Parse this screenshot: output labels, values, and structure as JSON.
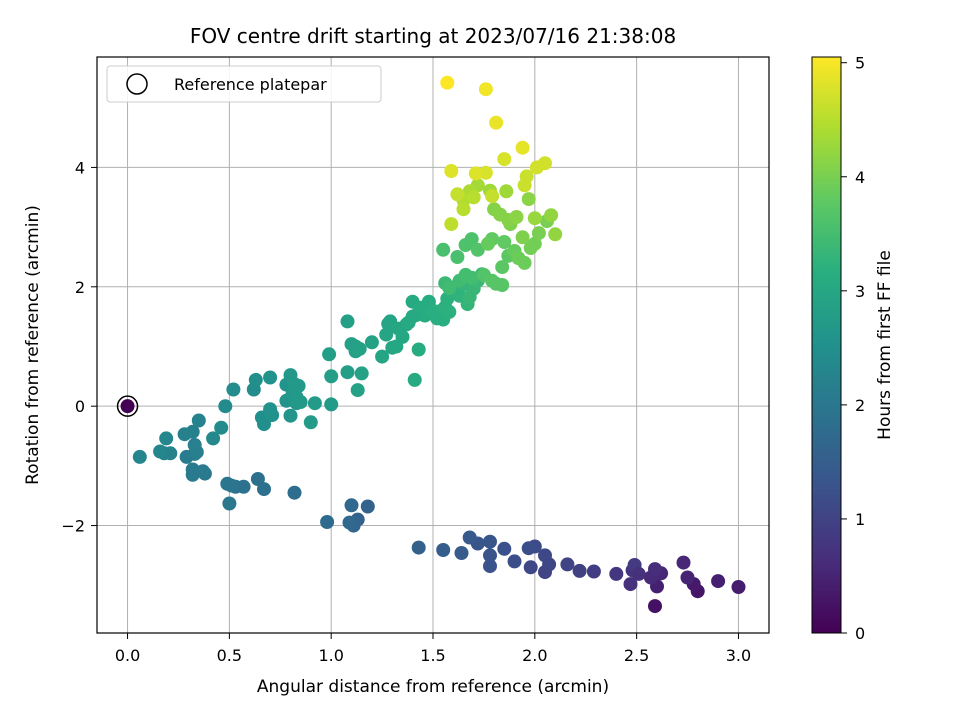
{
  "chart_data": {
    "type": "scatter",
    "title": "FOV centre drift starting at 2023/07/16 21:38:08",
    "xlabel": "Angular distance from reference (arcmin)",
    "ylabel": "Rotation from reference (arcmin)",
    "xlim": [
      -0.15,
      3.15
    ],
    "ylim": [
      -3.8,
      5.85
    ],
    "xticks": [
      0.0,
      0.5,
      1.0,
      1.5,
      2.0,
      2.5,
      3.0
    ],
    "xtick_labels": [
      "0.0",
      "0.5",
      "1.0",
      "1.5",
      "2.0",
      "2.5",
      "3.0"
    ],
    "yticks": [
      -2,
      0,
      2,
      4
    ],
    "ytick_labels": [
      "−2",
      "0",
      "2",
      "4"
    ],
    "grid": true,
    "legend": {
      "placement": "upper-left",
      "entries": [
        {
          "label": "Reference platepar",
          "marker": "open-circle"
        }
      ]
    },
    "reference_point": {
      "x": 0.0,
      "y": 0.0,
      "color": "#440154"
    },
    "colorbar": {
      "label": "Hours from first FF file",
      "range": [
        0,
        5.05
      ],
      "ticks": [
        0,
        1,
        2,
        3,
        4,
        5
      ],
      "tick_labels": [
        "0",
        "1",
        "2",
        "3",
        "4",
        "5"
      ],
      "colormap": "viridis"
    },
    "points": [
      [
        2.59,
        -3.35,
        0.25
      ],
      [
        2.8,
        -3.1,
        0.3
      ],
      [
        2.78,
        -2.98,
        0.35
      ],
      [
        3.0,
        -3.03,
        0.4
      ],
      [
        2.9,
        -2.93,
        0.45
      ],
      [
        2.75,
        -2.87,
        0.5
      ],
      [
        2.73,
        -2.62,
        0.55
      ],
      [
        2.6,
        -3.02,
        0.45
      ],
      [
        2.62,
        -2.8,
        0.55
      ],
      [
        2.57,
        -2.87,
        0.6
      ],
      [
        2.59,
        -2.73,
        0.65
      ],
      [
        2.47,
        -2.98,
        0.7
      ],
      [
        2.48,
        -2.75,
        0.75
      ],
      [
        2.4,
        -2.81,
        0.8
      ],
      [
        2.49,
        -2.66,
        0.85
      ],
      [
        2.51,
        -2.81,
        0.7
      ],
      [
        2.29,
        -2.77,
        0.9
      ],
      [
        2.22,
        -2.76,
        0.95
      ],
      [
        2.16,
        -2.65,
        1.0
      ],
      [
        2.05,
        -2.78,
        1.0
      ],
      [
        2.07,
        -2.65,
        1.05
      ],
      [
        2.05,
        -2.5,
        1.1
      ],
      [
        1.98,
        -2.7,
        1.1
      ],
      [
        2.0,
        -2.35,
        1.15
      ],
      [
        1.97,
        -2.38,
        1.2
      ],
      [
        1.9,
        -2.6,
        1.2
      ],
      [
        1.85,
        -2.39,
        1.25
      ],
      [
        1.78,
        -2.68,
        1.3
      ],
      [
        1.78,
        -2.5,
        1.3
      ],
      [
        1.78,
        -2.27,
        1.35
      ],
      [
        1.72,
        -2.3,
        1.35
      ],
      [
        1.68,
        -2.2,
        1.4
      ],
      [
        1.64,
        -2.46,
        1.45
      ],
      [
        1.55,
        -2.41,
        1.5
      ],
      [
        1.43,
        -2.37,
        1.55
      ],
      [
        1.18,
        -1.68,
        1.6
      ],
      [
        1.13,
        -1.9,
        1.6
      ],
      [
        1.11,
        -2.0,
        1.65
      ],
      [
        1.09,
        -1.95,
        1.7
      ],
      [
        1.1,
        -1.66,
        1.7
      ],
      [
        0.98,
        -1.94,
        1.75
      ],
      [
        0.82,
        -1.45,
        1.8
      ],
      [
        0.67,
        -1.39,
        1.85
      ],
      [
        0.64,
        -1.22,
        1.85
      ],
      [
        0.57,
        -1.35,
        1.9
      ],
      [
        0.53,
        -1.35,
        1.9
      ],
      [
        0.51,
        -1.33,
        1.95
      ],
      [
        0.49,
        -1.3,
        1.95
      ],
      [
        0.5,
        -1.63,
        2.0
      ],
      [
        0.38,
        -1.13,
        2.0
      ],
      [
        0.37,
        -1.09,
        2.05
      ],
      [
        0.32,
        -1.15,
        2.05
      ],
      [
        0.32,
        -1.06,
        2.05
      ],
      [
        0.29,
        -0.85,
        2.1
      ],
      [
        0.33,
        -0.8,
        2.1
      ],
      [
        0.34,
        -0.77,
        2.15
      ],
      [
        0.33,
        -0.65,
        2.15
      ],
      [
        0.32,
        -0.43,
        2.2
      ],
      [
        0.28,
        -0.47,
        2.2
      ],
      [
        0.35,
        -0.24,
        2.25
      ],
      [
        0.21,
        -0.79,
        2.25
      ],
      [
        0.18,
        -0.79,
        2.25
      ],
      [
        0.16,
        -0.76,
        2.3
      ],
      [
        0.19,
        -0.54,
        2.3
      ],
      [
        0.06,
        -0.85,
        2.3
      ],
      [
        0.42,
        -0.54,
        2.35
      ],
      [
        0.46,
        -0.36,
        2.4
      ],
      [
        0.48,
        0.0,
        2.4
      ],
      [
        0.52,
        0.28,
        2.45
      ],
      [
        0.62,
        0.28,
        2.45
      ],
      [
        0.63,
        0.44,
        2.5
      ],
      [
        0.67,
        -0.3,
        2.5
      ],
      [
        0.66,
        -0.19,
        2.5
      ],
      [
        0.71,
        -0.15,
        2.55
      ],
      [
        0.7,
        -0.05,
        2.55
      ],
      [
        0.7,
        0.48,
        2.55
      ],
      [
        0.78,
        0.36,
        2.6
      ],
      [
        0.78,
        0.09,
        2.6
      ],
      [
        0.8,
        -0.16,
        2.6
      ],
      [
        0.81,
        0.2,
        2.65
      ],
      [
        0.8,
        0.52,
        2.65
      ],
      [
        0.83,
        0.05,
        2.65
      ],
      [
        0.82,
        0.37,
        2.7
      ],
      [
        0.84,
        0.34,
        2.7
      ],
      [
        0.83,
        0.15,
        2.7
      ],
      [
        0.85,
        0.07,
        2.7
      ],
      [
        0.9,
        -0.27,
        2.75
      ],
      [
        0.92,
        0.05,
        2.75
      ],
      [
        1.0,
        0.03,
        2.75
      ],
      [
        1.0,
        0.5,
        2.8
      ],
      [
        0.99,
        0.87,
        2.8
      ],
      [
        1.08,
        0.57,
        2.8
      ],
      [
        1.08,
        1.42,
        2.85
      ],
      [
        1.1,
        1.04,
        2.85
      ],
      [
        1.12,
        1.0,
        2.85
      ],
      [
        1.12,
        0.92,
        2.85
      ],
      [
        1.14,
        0.96,
        2.9
      ],
      [
        1.13,
        0.27,
        2.9
      ],
      [
        1.15,
        0.55,
        2.9
      ],
      [
        1.2,
        1.07,
        2.9
      ],
      [
        1.25,
        0.83,
        2.95
      ],
      [
        1.27,
        1.2,
        2.95
      ],
      [
        1.28,
        1.38,
        2.95
      ],
      [
        1.29,
        1.42,
        2.95
      ],
      [
        1.3,
        0.98,
        2.95
      ],
      [
        1.32,
        1.0,
        3.0
      ],
      [
        1.33,
        1.3,
        3.0
      ],
      [
        1.35,
        1.16,
        3.0
      ],
      [
        1.37,
        1.37,
        3.0
      ],
      [
        1.38,
        1.4,
        3.05
      ],
      [
        1.4,
        1.5,
        3.05
      ],
      [
        1.4,
        1.75,
        3.05
      ],
      [
        1.41,
        0.44,
        3.05
      ],
      [
        1.42,
        1.53,
        3.05
      ],
      [
        1.43,
        0.95,
        3.1
      ],
      [
        1.44,
        1.65,
        3.1
      ],
      [
        1.46,
        1.52,
        3.1
      ],
      [
        1.48,
        1.75,
        3.1
      ],
      [
        1.5,
        1.6,
        3.15
      ],
      [
        1.52,
        1.47,
        3.15
      ],
      [
        1.54,
        1.6,
        3.15
      ],
      [
        1.55,
        1.45,
        3.15
      ],
      [
        1.56,
        1.66,
        3.2
      ],
      [
        1.57,
        1.8,
        3.2
      ],
      [
        1.58,
        1.58,
        3.2
      ],
      [
        1.6,
        1.9,
        3.2
      ],
      [
        1.61,
        2.0,
        3.25
      ],
      [
        1.63,
        1.85,
        3.25
      ],
      [
        1.65,
        2.04,
        3.3
      ],
      [
        1.67,
        1.71,
        3.3
      ],
      [
        1.68,
        1.83,
        3.35
      ],
      [
        1.7,
        1.97,
        3.35
      ],
      [
        1.72,
        2.1,
        3.4
      ],
      [
        1.74,
        2.21,
        3.4
      ],
      [
        1.56,
        2.06,
        3.4
      ],
      [
        1.58,
        1.98,
        3.45
      ],
      [
        1.63,
        2.1,
        3.45
      ],
      [
        1.66,
        2.2,
        3.5
      ],
      [
        1.69,
        2.15,
        3.5
      ],
      [
        1.55,
        2.62,
        3.55
      ],
      [
        1.62,
        2.5,
        3.55
      ],
      [
        1.66,
        2.7,
        3.6
      ],
      [
        1.69,
        2.8,
        3.6
      ],
      [
        1.72,
        2.62,
        3.65
      ],
      [
        1.75,
        2.2,
        3.65
      ],
      [
        1.79,
        2.1,
        3.7
      ],
      [
        1.81,
        2.05,
        3.7
      ],
      [
        1.84,
        2.03,
        3.7
      ],
      [
        1.84,
        2.33,
        3.75
      ],
      [
        1.87,
        2.52,
        3.75
      ],
      [
        1.85,
        2.75,
        3.8
      ],
      [
        1.79,
        2.8,
        3.8
      ],
      [
        1.77,
        2.72,
        3.85
      ],
      [
        1.9,
        2.6,
        3.85
      ],
      [
        1.92,
        2.48,
        3.9
      ],
      [
        1.95,
        2.4,
        3.9
      ],
      [
        1.98,
        2.65,
        3.95
      ],
      [
        2.0,
        2.72,
        3.95
      ],
      [
        2.02,
        2.9,
        4.0
      ],
      [
        2.06,
        3.1,
        4.0
      ],
      [
        1.94,
        2.83,
        4.05
      ],
      [
        1.88,
        3.05,
        4.05
      ],
      [
        1.83,
        3.21,
        4.1
      ],
      [
        1.8,
        3.3,
        4.1
      ],
      [
        1.87,
        3.12,
        4.1
      ],
      [
        1.91,
        3.17,
        4.15
      ],
      [
        1.97,
        3.47,
        4.15
      ],
      [
        2.08,
        3.2,
        4.2
      ],
      [
        2.1,
        2.88,
        4.2
      ],
      [
        2.0,
        3.15,
        4.25
      ],
      [
        1.86,
        3.6,
        4.3
      ],
      [
        1.78,
        3.61,
        4.3
      ],
      [
        1.72,
        3.7,
        4.35
      ],
      [
        1.68,
        3.6,
        4.4
      ],
      [
        1.65,
        3.45,
        4.45
      ],
      [
        1.7,
        3.5,
        4.5
      ],
      [
        1.65,
        3.3,
        4.5
      ],
      [
        1.59,
        3.05,
        4.55
      ],
      [
        1.62,
        3.55,
        4.6
      ],
      [
        1.79,
        3.52,
        4.6
      ],
      [
        1.95,
        3.7,
        4.65
      ],
      [
        1.96,
        3.85,
        4.65
      ],
      [
        2.01,
        4.0,
        4.7
      ],
      [
        2.05,
        4.07,
        4.7
      ],
      [
        1.85,
        4.14,
        4.75
      ],
      [
        1.76,
        3.91,
        4.75
      ],
      [
        1.71,
        3.9,
        4.8
      ],
      [
        1.59,
        3.94,
        4.8
      ],
      [
        1.94,
        4.33,
        4.85
      ],
      [
        1.81,
        4.75,
        4.9
      ],
      [
        1.76,
        5.31,
        4.95
      ],
      [
        1.57,
        5.42,
        5.05
      ]
    ]
  }
}
